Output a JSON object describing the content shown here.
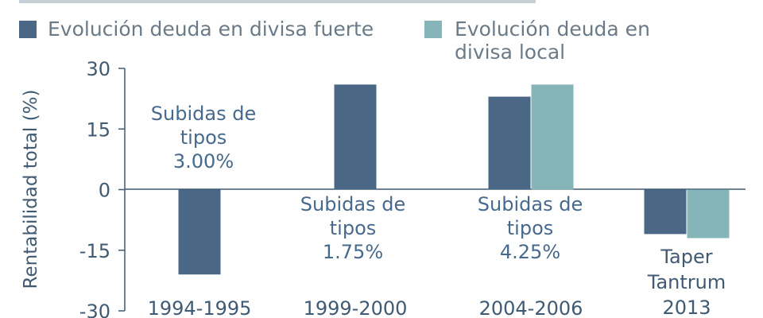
{
  "chart_data": {
    "type": "bar",
    "title": "",
    "xlabel": "",
    "ylabel": "Rentabilidad total (%)",
    "ylim": [
      -30,
      30
    ],
    "yticks": [
      30,
      15,
      0,
      -15,
      -30
    ],
    "grid": false,
    "legend_position": "top",
    "categories": [
      "1994-1995",
      "1999-2000",
      "2004-2006",
      "Taper Tantrum 2013"
    ],
    "category_labels": [
      [
        "1994-1995"
      ],
      [
        "1999-2000"
      ],
      [
        "2004-2006"
      ],
      [
        "Taper",
        "Tantrum",
        "2013"
      ]
    ],
    "series": [
      {
        "name": "Evolución deuda en divisa fuerte",
        "values": [
          -21,
          26,
          23,
          -11
        ],
        "color": "#4a6785"
      },
      {
        "name": "Evolución deuda en divisa local",
        "values": [
          null,
          null,
          26,
          -12
        ],
        "color": "#86b5b9"
      }
    ],
    "annotations": [
      {
        "category": "1994-1995",
        "lines": [
          "Subidas de",
          "tipos",
          "3.00%"
        ]
      },
      {
        "category": "1999-2000",
        "lines": [
          "Subidas de",
          "tipos",
          "1.75%"
        ]
      },
      {
        "category": "2004-2006",
        "lines": [
          "Subidas de",
          "tipos",
          "4.25%"
        ]
      }
    ]
  }
}
